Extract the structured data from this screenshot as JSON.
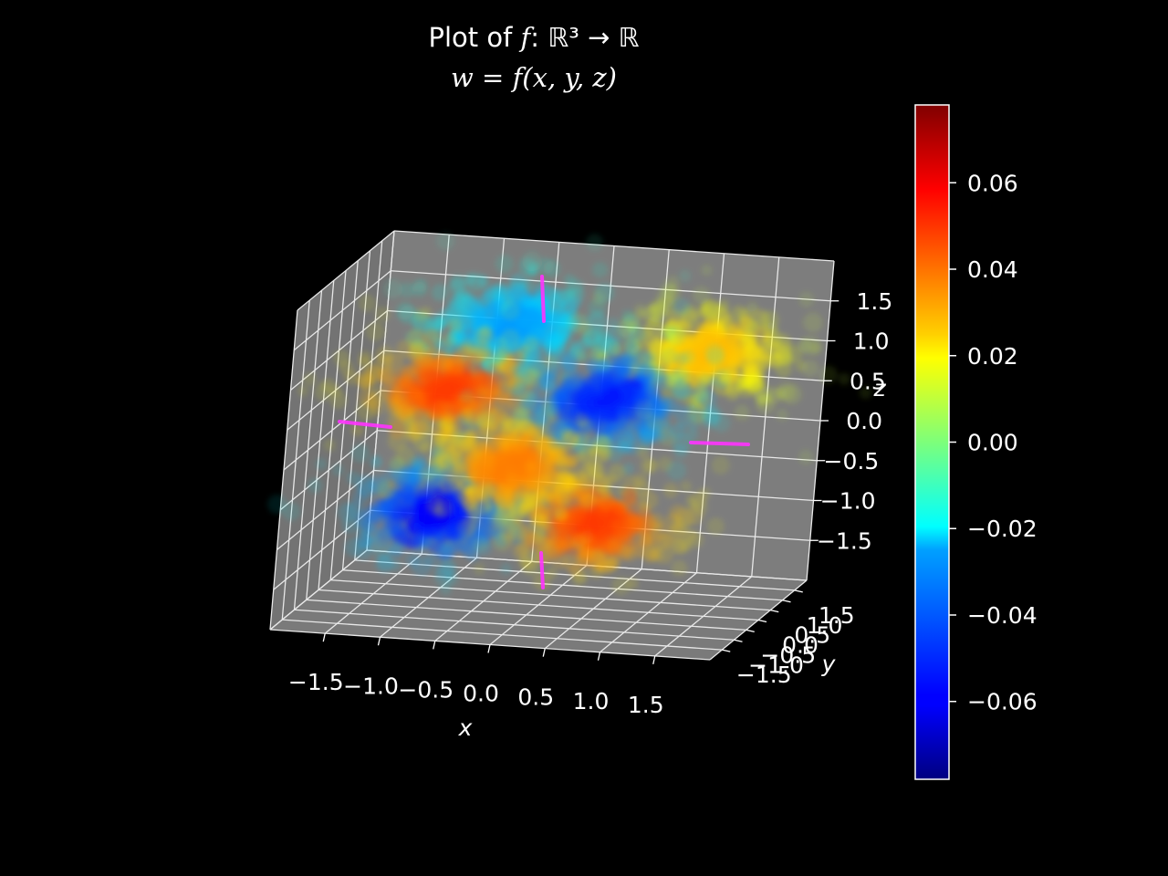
{
  "chart_data": {
    "type": "scatter",
    "title": {
      "line1_prefix": "Plot of ",
      "line1_f": "f",
      "line1_map": ": ℝ³ → ℝ",
      "line2": "w = f(x, y, z)"
    },
    "xlabel": "x",
    "ylabel": "y",
    "zlabel": "z",
    "xlim": [
      -2,
      2
    ],
    "ylim": [
      -2,
      2
    ],
    "zlim": [
      -2,
      2
    ],
    "x_ticks": [
      "−1.5",
      "−1.0",
      "−0.5",
      "0.0",
      "0.5",
      "1.0",
      "1.5"
    ],
    "y_ticks": [
      "−1.5",
      "−1.0",
      "−0.5",
      "0.0",
      "0.5",
      "1.0",
      "1.5"
    ],
    "z_ticks": [
      "−1.5",
      "−1.0",
      "−0.5",
      "0.0",
      "0.5",
      "1.0",
      "1.5"
    ],
    "tick_values": [
      -1.5,
      -1.0,
      -0.5,
      0.0,
      0.5,
      1.0,
      1.5
    ],
    "colormap": "jet",
    "colorbar": {
      "min": -0.078,
      "max": 0.078,
      "tick_values": [
        0.06,
        0.04,
        0.02,
        0.0,
        -0.02,
        -0.04,
        -0.06
      ],
      "tick_labels": [
        "0.06",
        "0.04",
        "0.02",
        "0.00",
        "−0.02",
        "−0.04",
        "−0.06"
      ]
    },
    "clusters": [
      {
        "label": "upper-left lobe",
        "x": -1.0,
        "y": 0.0,
        "z": 0.6,
        "w": 0.05
      },
      {
        "label": "upper-right lobe",
        "x": 0.45,
        "y": 0.0,
        "z": 0.6,
        "w": -0.055
      },
      {
        "label": "lower-left lobe",
        "x": -1.0,
        "y": 0.0,
        "z": -0.95,
        "w": -0.06
      },
      {
        "label": "lower-right lobe",
        "x": 0.45,
        "y": 0.0,
        "z": -0.95,
        "w": 0.05
      },
      {
        "label": "back-upper-left lobe",
        "x": -0.7,
        "y": 1.2,
        "z": 1.15,
        "w": -0.035
      },
      {
        "label": "back-upper-right lobe",
        "x": 1.1,
        "y": 1.2,
        "z": 0.95,
        "w": 0.03
      },
      {
        "label": "center small lobe",
        "x": -0.35,
        "y": 0.0,
        "z": -0.3,
        "w": 0.04
      }
    ],
    "axis_lines_color": "#ff33ff",
    "grid": true,
    "pane_color": "#7a7a7a",
    "background": "#000000"
  }
}
